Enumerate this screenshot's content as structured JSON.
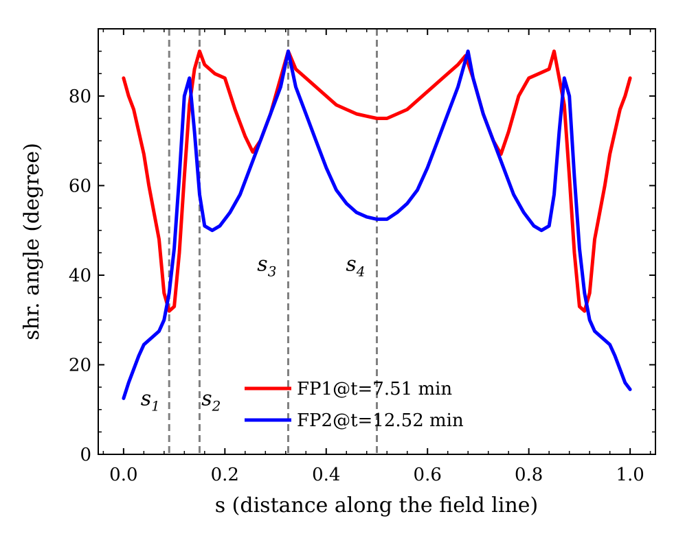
{
  "chart_data": {
    "type": "line",
    "xlabel": "s (distance along the field line)",
    "ylabel": "shr. angle (degree)",
    "xlim": [
      -0.05,
      1.05
    ],
    "ylim": [
      0,
      95
    ],
    "xticks": [
      0.0,
      0.2,
      0.4,
      0.6,
      0.8,
      1.0
    ],
    "xtick_labels": [
      "0.0",
      "0.2",
      "0.4",
      "0.6",
      "0.8",
      "1.0"
    ],
    "yticks": [
      0,
      20,
      40,
      60,
      80
    ],
    "ytick_labels": [
      "0",
      "20",
      "40",
      "60",
      "80"
    ],
    "legend_position": "bottom-center",
    "markers": [
      {
        "x": 0.09,
        "base": "s",
        "sub": "1",
        "label_x": 0.05,
        "label_y": 12.5
      },
      {
        "x": 0.15,
        "base": "s",
        "sub": "2",
        "label_x": 0.17,
        "label_y": 12.5
      },
      {
        "x": 0.325,
        "base": "s",
        "sub": "3",
        "label_x": 0.28,
        "label_y": 42.5
      },
      {
        "x": 0.5,
        "base": "s",
        "sub": "4",
        "label_x": 0.455,
        "label_y": 42.5
      }
    ],
    "series": [
      {
        "name": "FP1@t=7.51 min",
        "color": "#ff0000",
        "x": [
          0.0,
          0.01,
          0.02,
          0.03,
          0.04,
          0.05,
          0.06,
          0.07,
          0.08,
          0.09,
          0.1,
          0.11,
          0.12,
          0.13,
          0.14,
          0.15,
          0.16,
          0.18,
          0.2,
          0.22,
          0.24,
          0.255,
          0.27,
          0.29,
          0.31,
          0.325,
          0.34,
          0.36,
          0.38,
          0.4,
          0.42,
          0.44,
          0.46,
          0.48,
          0.5,
          0.52,
          0.54,
          0.56,
          0.58,
          0.6,
          0.62,
          0.64,
          0.66,
          0.675,
          0.69,
          0.71,
          0.73,
          0.745,
          0.76,
          0.78,
          0.8,
          0.82,
          0.84,
          0.85,
          0.86,
          0.87,
          0.88,
          0.89,
          0.9,
          0.91,
          0.92,
          0.93,
          0.94,
          0.95,
          0.96,
          0.97,
          0.98,
          0.99,
          1.0
        ],
        "y": [
          84,
          80,
          77,
          72,
          67,
          60,
          54,
          48,
          36,
          32,
          33,
          45,
          62,
          78,
          86,
          90,
          87,
          85,
          84,
          77,
          71,
          67.5,
          70,
          76,
          84,
          90,
          86,
          84,
          82,
          80,
          78,
          77,
          76,
          75.5,
          75,
          75,
          76,
          77,
          79,
          81,
          83,
          85,
          87,
          89,
          84,
          76,
          70,
          67,
          72,
          80,
          84,
          85,
          86,
          90,
          84,
          78,
          62,
          45,
          33,
          32,
          36,
          48,
          54,
          60,
          67,
          72,
          77,
          80,
          84
        ]
      },
      {
        "name": "FP2@t=12.52 min",
        "color": "#0000ff",
        "x": [
          0.0,
          0.01,
          0.02,
          0.03,
          0.04,
          0.05,
          0.06,
          0.07,
          0.08,
          0.09,
          0.1,
          0.11,
          0.12,
          0.13,
          0.14,
          0.15,
          0.16,
          0.175,
          0.19,
          0.21,
          0.23,
          0.25,
          0.27,
          0.29,
          0.31,
          0.325,
          0.34,
          0.36,
          0.38,
          0.4,
          0.42,
          0.44,
          0.46,
          0.48,
          0.5,
          0.52,
          0.54,
          0.56,
          0.58,
          0.6,
          0.62,
          0.64,
          0.66,
          0.68,
          0.69,
          0.71,
          0.73,
          0.75,
          0.77,
          0.79,
          0.81,
          0.825,
          0.84,
          0.85,
          0.86,
          0.87,
          0.88,
          0.89,
          0.9,
          0.91,
          0.92,
          0.93,
          0.94,
          0.95,
          0.96,
          0.97,
          0.98,
          0.99,
          1.0
        ],
        "y": [
          12.5,
          16,
          19,
          22,
          24.5,
          25.5,
          26.5,
          27.5,
          30,
          36,
          46,
          62,
          80,
          84,
          72,
          58,
          51,
          50,
          51,
          54,
          58,
          64,
          70,
          76,
          82,
          90,
          82,
          76,
          70,
          64,
          59,
          56,
          54,
          53,
          52.5,
          52.5,
          54,
          56,
          59,
          64,
          70,
          76,
          82,
          90,
          84,
          76,
          70,
          64,
          58,
          54,
          51,
          50,
          51,
          58,
          72,
          84,
          80,
          62,
          46,
          36,
          30,
          27.5,
          26.5,
          25.5,
          24.5,
          22,
          19,
          16,
          14.5
        ]
      }
    ]
  }
}
